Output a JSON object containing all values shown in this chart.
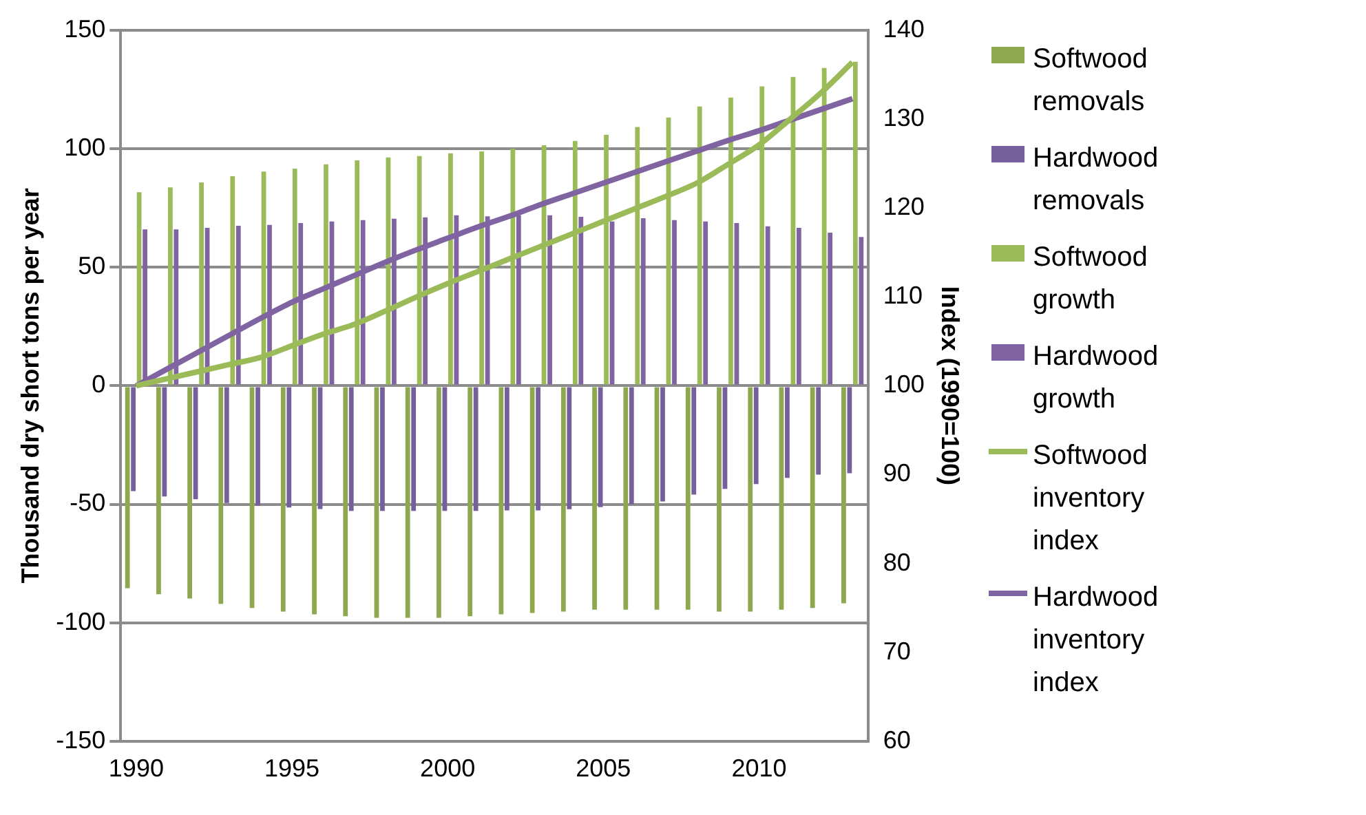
{
  "chart_data": {
    "type": "bar",
    "ylabel": "Thousand dry short tons per year",
    "y2label": "Index (1990=100)",
    "categories": [
      "1990",
      null,
      null,
      null,
      null,
      "1995",
      null,
      null,
      null,
      null,
      "2000",
      null,
      null,
      null,
      null,
      "2005",
      null,
      null,
      null,
      null,
      "2010",
      null,
      null,
      null
    ],
    "series": [
      {
        "name": "Softwood removals",
        "color": "#8ea850",
        "values": [
          -85.4,
          -88,
          -89.8,
          -92,
          -93.8,
          -95.3,
          -96.5,
          -97.3,
          -97.9,
          -97.9,
          -97.9,
          -97.3,
          -96.5,
          -95.9,
          -95.3,
          -94.5,
          -94.5,
          -94.5,
          -94.5,
          -95.3,
          -95.3,
          -94.5,
          -93.8,
          -91.8
        ]
      },
      {
        "name": "Hardwood removals",
        "color": "#75609b",
        "values": [
          -44.5,
          -46.7,
          -47.9,
          -49.5,
          -50.6,
          -51.4,
          -52,
          -52.8,
          -52.8,
          -52.8,
          -52.8,
          -52.8,
          -52.6,
          -52.6,
          -52.1,
          -51.2,
          -50,
          -48.8,
          -45.9,
          -43.5,
          -41.5,
          -38.9,
          -37.5,
          -36.9
        ]
      },
      {
        "name": "Softwood growth",
        "color": "#9bbb59",
        "values": [
          81.7,
          83.7,
          85.8,
          88.4,
          90.4,
          91.6,
          93.4,
          95.1,
          96.3,
          96.9,
          98.1,
          98.9,
          100.1,
          101.5,
          103.3,
          105.9,
          109.2,
          113.2,
          117.8,
          121.6,
          126.3,
          130.3,
          134.1,
          136.7
        ]
      },
      {
        "name": "Hardwood growth",
        "color": "#8064a2",
        "values": [
          66,
          66,
          66.6,
          67.5,
          67.9,
          68.7,
          69.3,
          69.9,
          70.5,
          71.1,
          71.9,
          71.5,
          71.9,
          71.9,
          71.3,
          69.3,
          70.7,
          69.9,
          69.3,
          68.7,
          67.3,
          66.6,
          64.6,
          62.8
        ]
      },
      {
        "name": "Softwood inventory index",
        "type": "line",
        "axis": "y2",
        "color": "#9bbb59",
        "values": [
          100,
          100.8,
          101.6,
          102.4,
          103.2,
          104.5,
          105.8,
          106.9,
          108.4,
          110,
          111.5,
          112.9,
          114.3,
          115.7,
          117.1,
          118.5,
          119.9,
          121.3,
          122.8,
          124.9,
          127.1,
          130,
          133,
          136.4
        ]
      },
      {
        "name": "Hardwood inventory index",
        "type": "line",
        "axis": "y2",
        "color": "#8064a2",
        "values": [
          100,
          101.9,
          103.8,
          105.7,
          107.6,
          109.4,
          110.9,
          112.4,
          113.9,
          115.3,
          116.6,
          117.9,
          119.1,
          120.4,
          121.6,
          122.8,
          124,
          125.2,
          126.4,
          127.6,
          128.7,
          129.9,
          131.1,
          132.3
        ]
      }
    ],
    "ylim": [
      -150,
      150
    ],
    "yticks": [
      -150,
      -100,
      -50,
      0,
      50,
      100,
      150
    ],
    "y2lim": [
      60,
      140
    ],
    "y2ticks": [
      60,
      70,
      80,
      90,
      100,
      110,
      120,
      130,
      140
    ],
    "grid": "y",
    "legend": "right",
    "marker": "none",
    "line_style": "solid"
  }
}
